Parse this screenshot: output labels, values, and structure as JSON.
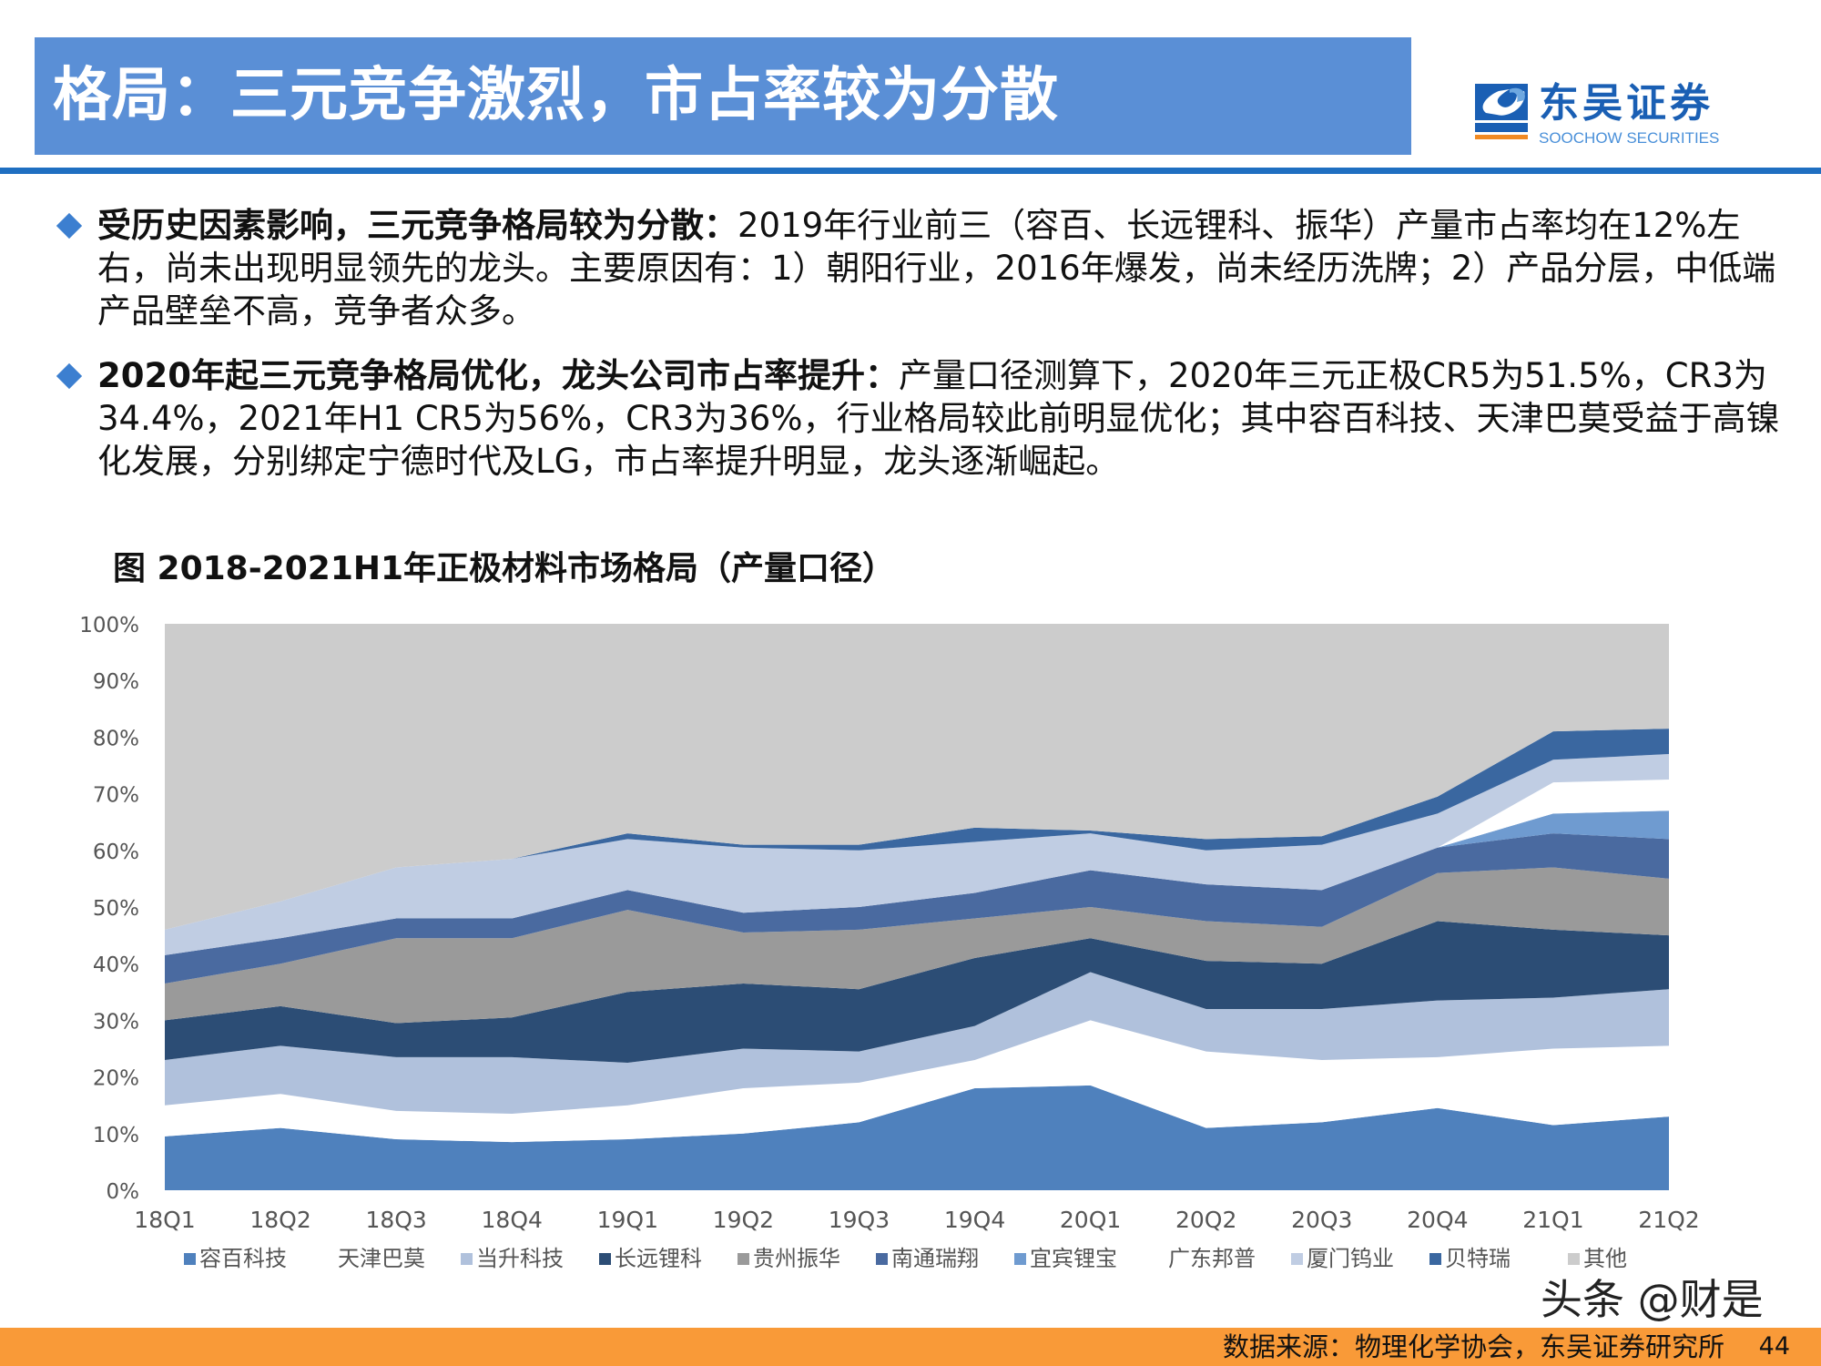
{
  "header": {
    "title": "格局：三元竞争激烈，市占率较为分散"
  },
  "logo": {
    "cn": "东吴证券",
    "en": "SOOCHOW SECURITIES",
    "mark": "SCS"
  },
  "bullets": [
    {
      "bold": "受历史因素影响，三元竞争格局较为分散：",
      "text": "2019年行业前三（容百、长远锂科、振华）产量市占率均在12%左右，尚未出现明显领先的龙头。主要原因有：1）朝阳行业，2016年爆发，尚未经历洗牌；2）产品分层，中低端产品壁垒不高，竞争者众多。"
    },
    {
      "bold": "2020年起三元竞争格局优化，龙头公司市占率提升：",
      "text": "产量口径测算下，2020年三元正极CR5为51.5%，CR3为34.4%，2021年H1 CR5为56%，CR3为36%，行业格局较此前明显优化；其中容百科技、天津巴莫受益于高镍化发展，分别绑定宁德时代及LG，市占率提升明显，龙头逐渐崛起。"
    }
  ],
  "chart_title": "图  2018-2021H1年正极材料市场格局（产量口径）",
  "chart_data": {
    "type": "area",
    "stacked": true,
    "title": "图  2018-2021H1年正极材料市场格局（产量口径）",
    "categories": [
      "18Q1",
      "18Q2",
      "18Q3",
      "18Q4",
      "19Q1",
      "19Q2",
      "19Q3",
      "19Q4",
      "20Q1",
      "20Q2",
      "20Q3",
      "20Q4",
      "21Q1",
      "21Q2"
    ],
    "ylim": [
      0,
      100
    ],
    "yticks": [
      "0%",
      "10%",
      "20%",
      "30%",
      "40%",
      "50%",
      "60%",
      "70%",
      "80%",
      "90%",
      "100%"
    ],
    "legend_position": "bottom",
    "series": [
      {
        "name": "容百科技",
        "color": "#4f81bd",
        "values": [
          9.5,
          11,
          9,
          8.5,
          9,
          10,
          12,
          18,
          18.5,
          11,
          12,
          14.5,
          11.5,
          13
        ]
      },
      {
        "name": "天津巴莫",
        "color": "#ffffff",
        "values": [
          5.5,
          6,
          5,
          5,
          6,
          8,
          7,
          5,
          11.5,
          13.5,
          11,
          9,
          13.5,
          12.5
        ]
      },
      {
        "name": "当升科技",
        "color": "#b0c1dc",
        "values": [
          8,
          8.5,
          9.5,
          10,
          7.5,
          7,
          5.5,
          6,
          8.5,
          7.5,
          9,
          10,
          9,
          10
        ]
      },
      {
        "name": "长远锂科",
        "color": "#2c4d75",
        "values": [
          7,
          7,
          6,
          7,
          12.5,
          11.5,
          11,
          12,
          6,
          8.5,
          8,
          14,
          12,
          9.5
        ]
      },
      {
        "name": "贵州振华",
        "color": "#9a9a9a",
        "values": [
          6.5,
          7.5,
          15,
          14,
          14.5,
          9,
          10.5,
          7,
          5.5,
          7,
          6.5,
          8.5,
          11,
          10
        ]
      },
      {
        "name": "南通瑞翔",
        "color": "#4a6aa0",
        "values": [
          5,
          4.5,
          3.5,
          3.5,
          3.5,
          3.5,
          4,
          4.5,
          6.5,
          6.5,
          6.5,
          4.5,
          6,
          7
        ]
      },
      {
        "name": "宜宾锂宝",
        "color": "#6f9bd0",
        "values": [
          0,
          0,
          0,
          0,
          0,
          0,
          0,
          0,
          0,
          0,
          0,
          0,
          3.5,
          5
        ]
      },
      {
        "name": "广东邦普",
        "color": "#ffffff",
        "values": [
          0,
          0,
          0,
          0,
          0,
          0,
          0,
          0,
          0,
          0,
          0,
          0,
          5.5,
          5.5
        ]
      },
      {
        "name": "厦门钨业",
        "color": "#c0cde3",
        "values": [
          4.5,
          6.5,
          9,
          10.5,
          9,
          11.5,
          10,
          9,
          6.5,
          6,
          8,
          6,
          4,
          4.5
        ]
      },
      {
        "name": "贝特瑞",
        "color": "#3a67a0",
        "values": [
          0,
          0,
          0,
          0,
          1,
          0.5,
          1,
          2.5,
          0.5,
          2,
          1.5,
          3,
          5,
          4.5
        ]
      },
      {
        "name": "其他",
        "color": "#cccccc",
        "values": [
          54,
          49,
          43,
          41.5,
          37,
          39,
          39,
          36,
          36.5,
          38,
          37.5,
          30.5,
          19,
          18.5
        ]
      }
    ]
  },
  "footer": {
    "source": "数据来源：物理化学协会，东吴证券研究所",
    "page": "44"
  },
  "watermark": "头条 @财是",
  "colors": {
    "header": "#5a8fd6",
    "rule": "#1f6fc1",
    "footer": "#f99a38"
  }
}
